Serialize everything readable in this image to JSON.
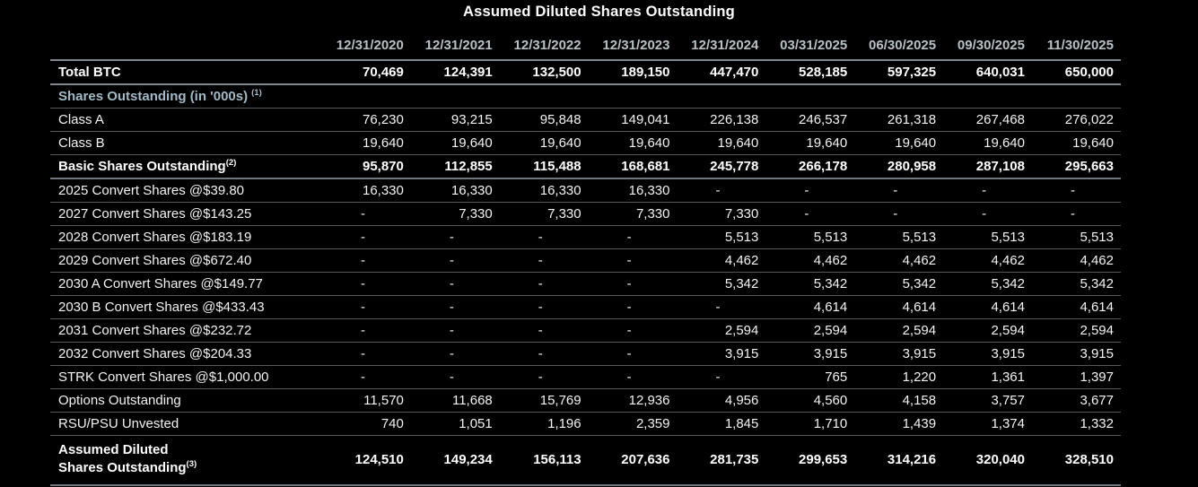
{
  "title": "Assumed Diluted Shares Outstanding",
  "colors": {
    "background": "#000000",
    "text": "#f2f3f3",
    "header_text": "#b7c0c5",
    "section_text": "#a3bac6",
    "line": "#53585b",
    "line_strong": "#7f898d"
  },
  "chart_data": {
    "type": "table",
    "title": "Assumed Diluted Shares Outstanding",
    "columns": [
      "12/31/2020",
      "12/31/2021",
      "12/31/2022",
      "12/31/2023",
      "12/31/2024",
      "03/31/2025",
      "06/30/2025",
      "09/30/2025",
      "11/30/2025"
    ],
    "rows": [
      {
        "label": "Total BTC",
        "style": "total-btc",
        "values": [
          "70,469",
          "124,391",
          "132,500",
          "189,150",
          "447,470",
          "528,185",
          "597,325",
          "640,031",
          "650,000"
        ]
      },
      {
        "label": "Shares Outstanding (in '000s)",
        "sup": "(1)",
        "style": "section",
        "values": []
      },
      {
        "label": "Class A",
        "style": "plain",
        "values": [
          "76,230",
          "93,215",
          "95,848",
          "149,041",
          "226,138",
          "246,537",
          "261,318",
          "267,468",
          "276,022"
        ]
      },
      {
        "label": "Class B",
        "style": "plain",
        "values": [
          "19,640",
          "19,640",
          "19,640",
          "19,640",
          "19,640",
          "19,640",
          "19,640",
          "19,640",
          "19,640"
        ]
      },
      {
        "label": "Basic Shares Outstanding",
        "sup": "(2)",
        "style": "subtotal",
        "values": [
          "95,870",
          "112,855",
          "115,488",
          "168,681",
          "245,778",
          "266,178",
          "280,958",
          "287,108",
          "295,663"
        ]
      },
      {
        "label": "2025 Convert Shares @$39.80",
        "style": "plain",
        "values": [
          "16,330",
          "16,330",
          "16,330",
          "16,330",
          "-",
          "-",
          "-",
          "-",
          "-"
        ]
      },
      {
        "label": "2027 Convert Shares @$143.25",
        "style": "plain",
        "values": [
          "-",
          "7,330",
          "7,330",
          "7,330",
          "7,330",
          "-",
          "-",
          "-",
          "-"
        ]
      },
      {
        "label": "2028 Convert Shares @$183.19",
        "style": "plain",
        "values": [
          "-",
          "-",
          "-",
          "-",
          "5,513",
          "5,513",
          "5,513",
          "5,513",
          "5,513"
        ]
      },
      {
        "label": "2029 Convert Shares @$672.40",
        "style": "plain",
        "values": [
          "-",
          "-",
          "-",
          "-",
          "4,462",
          "4,462",
          "4,462",
          "4,462",
          "4,462"
        ]
      },
      {
        "label": "2030 A Convert Shares @$149.77",
        "style": "plain",
        "values": [
          "-",
          "-",
          "-",
          "-",
          "5,342",
          "5,342",
          "5,342",
          "5,342",
          "5,342"
        ]
      },
      {
        "label": "2030 B Convert Shares @$433.43",
        "style": "plain",
        "values": [
          "-",
          "-",
          "-",
          "-",
          "-",
          "4,614",
          "4,614",
          "4,614",
          "4,614"
        ]
      },
      {
        "label": "2031 Convert Shares @$232.72",
        "style": "plain",
        "values": [
          "-",
          "-",
          "-",
          "-",
          "2,594",
          "2,594",
          "2,594",
          "2,594",
          "2,594"
        ]
      },
      {
        "label": "2032 Convert Shares @$204.33",
        "style": "plain",
        "values": [
          "-",
          "-",
          "-",
          "-",
          "3,915",
          "3,915",
          "3,915",
          "3,915",
          "3,915"
        ]
      },
      {
        "label": "STRK Convert Shares @$1,000.00",
        "style": "plain",
        "values": [
          "-",
          "-",
          "-",
          "-",
          "-",
          "765",
          "1,220",
          "1,361",
          "1,397"
        ]
      },
      {
        "label": "Options Outstanding",
        "style": "plain",
        "values": [
          "11,570",
          "11,668",
          "15,769",
          "12,936",
          "4,956",
          "4,560",
          "4,158",
          "3,757",
          "3,677"
        ]
      },
      {
        "label": "RSU/PSU Unvested",
        "style": "plain",
        "values": [
          "740",
          "1,051",
          "1,196",
          "2,359",
          "1,845",
          "1,710",
          "1,439",
          "1,374",
          "1,332"
        ]
      },
      {
        "label": "Assumed Diluted Shares Outstanding",
        "label_lines": [
          "Assumed Diluted",
          "Shares Outstanding"
        ],
        "sup": "(3)",
        "style": "grand",
        "values": [
          "124,510",
          "149,234",
          "156,113",
          "207,636",
          "281,735",
          "299,653",
          "314,216",
          "320,040",
          "328,510"
        ]
      }
    ]
  }
}
